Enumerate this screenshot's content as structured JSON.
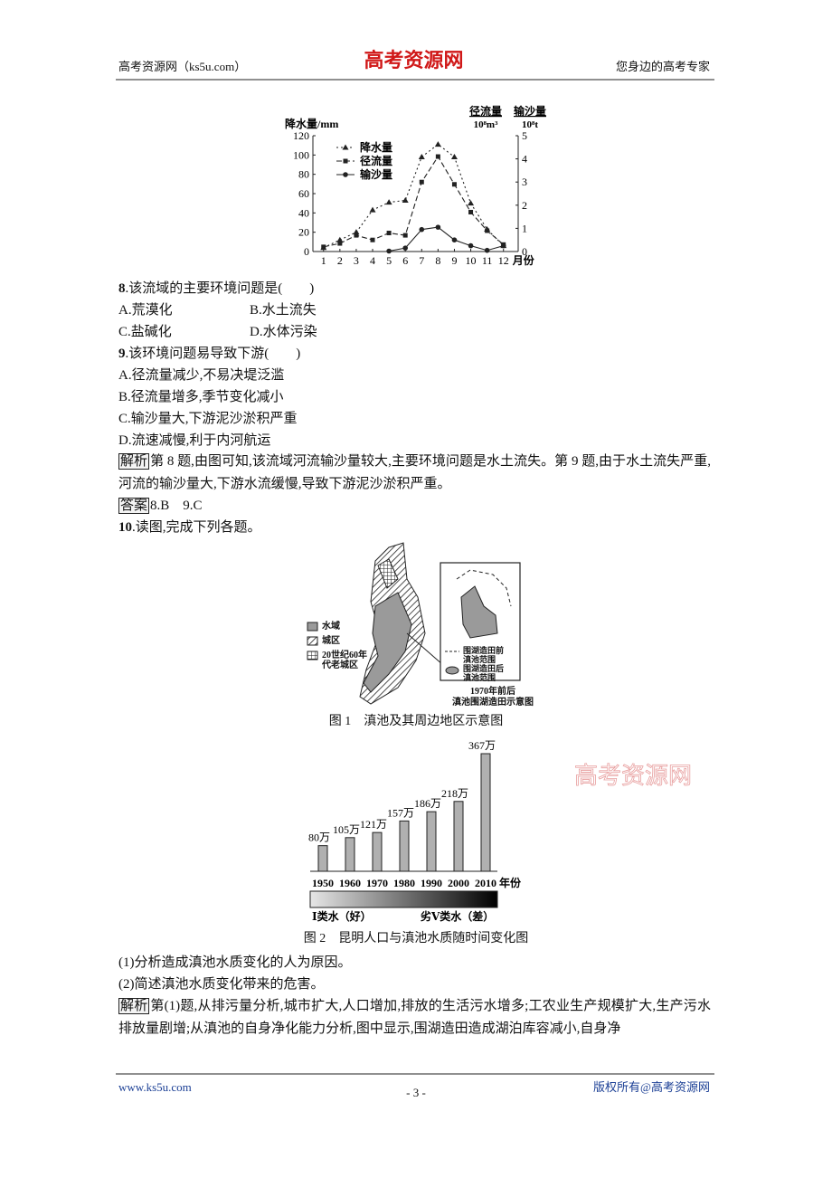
{
  "header": {
    "left": "高考资源网（ks5u.com）",
    "logo": "高考资源网",
    "right": "您身边的高考专家"
  },
  "chart_data": [
    {
      "type": "line",
      "y_label": "降水量/mm",
      "y2_label": "径流量",
      "y2_unit": "10⁸m³",
      "y3_label": "输沙量",
      "y3_unit": "10⁸t",
      "x_label": "月份",
      "x": [
        1,
        2,
        3,
        4,
        5,
        6,
        7,
        8,
        9,
        10,
        11,
        12
      ],
      "xlim": [
        0.35,
        12.9
      ],
      "xticks": [
        1,
        2,
        3,
        4,
        5,
        6,
        7,
        8,
        9,
        10,
        11,
        12
      ],
      "ylim": [
        0,
        120
      ],
      "yticks": [
        0,
        20,
        40,
        60,
        80,
        100,
        120
      ],
      "y2lim": [
        0,
        5
      ],
      "y2ticks": [
        0,
        1,
        2,
        3,
        4,
        5
      ],
      "series": [
        {
          "name": "降水量",
          "color": "#222222",
          "marker": "triangle",
          "dash": "2,3",
          "values": [
            4,
            12,
            20,
            43,
            51,
            53,
            98,
            111,
            98,
            50,
            23,
            6
          ]
        },
        {
          "name": "径流量",
          "color": "#222222",
          "marker": "square",
          "dash": "6,3",
          "axis": "y2",
          "values": [
            0.2,
            0.35,
            0.7,
            0.5,
            0.8,
            0.7,
            3.0,
            4.1,
            2.9,
            1.7,
            0.9,
            0.3
          ]
        },
        {
          "name": "输沙量",
          "color": "#222222",
          "marker": "circle",
          "dash": "none",
          "axis": "y2",
          "values": [
            null,
            null,
            null,
            null,
            0.02,
            0.15,
            0.95,
            1.05,
            0.5,
            0.25,
            0.05,
            0.25
          ]
        }
      ]
    },
    {
      "type": "bar",
      "title": "图 2　昆明人口与滇池水质随时间变化图",
      "x_label": "年份",
      "categories": [
        "1950",
        "1960",
        "1970",
        "1980",
        "1990",
        "2000",
        "2010"
      ],
      "values": [
        80,
        105,
        121,
        157,
        186,
        218,
        367
      ],
      "value_labels": [
        "80万",
        "105万",
        "121万",
        "157万",
        "186万",
        "218万",
        "367万"
      ],
      "color": "#b0b0b0",
      "scale_left": "Ⅰ类水（好）",
      "scale_right": "劣Ⅴ类水（差）"
    }
  ],
  "questions": [
    {
      "number": "8",
      "stem": ".该流域的主要环境问题是(　　)",
      "options": [
        "A.荒漠化",
        "B.水土流失",
        "C.盐碱化",
        "D.水体污染"
      ]
    },
    {
      "number": "9",
      "stem": ".该环境问题易导致下游(　　)",
      "options": [
        "A.径流量减少,不易决堤泛滥",
        "B.径流量增多,季节变化减小",
        "C.输沙量大,下游泥沙淤积严重",
        "D.流速减慢,利于内河航运"
      ]
    }
  ],
  "analysis1": {
    "tag": "解析",
    "text": "第 8 题,由图可知,该流域河流输沙量较大,主要环境问题是水土流失。第 9 题,由于水土流失严重,河流的输沙量大,下游水流缓慢,导致下游泥沙淤积严重。"
  },
  "answer1": {
    "tag": "答案",
    "text": "8.B　9.C"
  },
  "q10": {
    "number": "10",
    "stem": ".读图,完成下列各题。"
  },
  "figure1": {
    "legend": [
      "水域",
      "城区",
      "20世纪60年代老城区"
    ],
    "inset_legend": [
      "围湖造田前滇池范围",
      "围湖造田后滇池范围"
    ],
    "inset_title": [
      "1970年前后",
      "滇池围湖造田示意图"
    ],
    "caption": "图 1　滇池及其周边地区示意图"
  },
  "watermark": "高考资源网",
  "subquestions": [
    "(1)分析造成滇池水质变化的人为原因。",
    "(2)简述滇池水质变化带来的危害。"
  ],
  "analysis2": {
    "tag": "解析",
    "text": "第(1)题,从排污量分析,城市扩大,人口增加,排放的生活污水增多;工农业生产规模扩大,生产污水排放量剧增;从滇池的自身净化能力分析,图中显示,围湖造田造成湖泊库容减小,自身净"
  },
  "footer": {
    "left": "www.ks5u.com",
    "page": "- 3 -",
    "right": "版权所有@高考资源网"
  }
}
